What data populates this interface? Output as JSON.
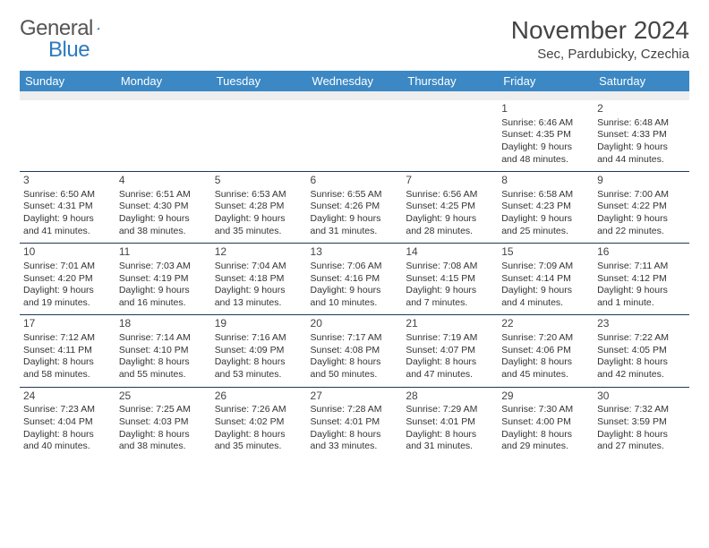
{
  "logo": {
    "word1": "General",
    "word2": "Blue"
  },
  "title": "November 2024",
  "location": "Sec, Pardubicky, Czechia",
  "colors": {
    "header_bg": "#3b88c4",
    "header_text": "#ffffff",
    "border": "#1f3a5a",
    "spacer_bg": "#eeeeee",
    "text": "#333333",
    "logo_gray": "#555555",
    "logo_blue": "#2e7ac0"
  },
  "day_headers": [
    "Sunday",
    "Monday",
    "Tuesday",
    "Wednesday",
    "Thursday",
    "Friday",
    "Saturday"
  ],
  "weeks": [
    [
      null,
      null,
      null,
      null,
      null,
      {
        "n": "1",
        "sunrise": "6:46 AM",
        "sunset": "4:35 PM",
        "dh": "9",
        "dm": "48"
      },
      {
        "n": "2",
        "sunrise": "6:48 AM",
        "sunset": "4:33 PM",
        "dh": "9",
        "dm": "44"
      }
    ],
    [
      {
        "n": "3",
        "sunrise": "6:50 AM",
        "sunset": "4:31 PM",
        "dh": "9",
        "dm": "41"
      },
      {
        "n": "4",
        "sunrise": "6:51 AM",
        "sunset": "4:30 PM",
        "dh": "9",
        "dm": "38"
      },
      {
        "n": "5",
        "sunrise": "6:53 AM",
        "sunset": "4:28 PM",
        "dh": "9",
        "dm": "35"
      },
      {
        "n": "6",
        "sunrise": "6:55 AM",
        "sunset": "4:26 PM",
        "dh": "9",
        "dm": "31"
      },
      {
        "n": "7",
        "sunrise": "6:56 AM",
        "sunset": "4:25 PM",
        "dh": "9",
        "dm": "28"
      },
      {
        "n": "8",
        "sunrise": "6:58 AM",
        "sunset": "4:23 PM",
        "dh": "9",
        "dm": "25"
      },
      {
        "n": "9",
        "sunrise": "7:00 AM",
        "sunset": "4:22 PM",
        "dh": "9",
        "dm": "22"
      }
    ],
    [
      {
        "n": "10",
        "sunrise": "7:01 AM",
        "sunset": "4:20 PM",
        "dh": "9",
        "dm": "19"
      },
      {
        "n": "11",
        "sunrise": "7:03 AM",
        "sunset": "4:19 PM",
        "dh": "9",
        "dm": "16"
      },
      {
        "n": "12",
        "sunrise": "7:04 AM",
        "sunset": "4:18 PM",
        "dh": "9",
        "dm": "13"
      },
      {
        "n": "13",
        "sunrise": "7:06 AM",
        "sunset": "4:16 PM",
        "dh": "9",
        "dm": "10"
      },
      {
        "n": "14",
        "sunrise": "7:08 AM",
        "sunset": "4:15 PM",
        "dh": "9",
        "dm": "7"
      },
      {
        "n": "15",
        "sunrise": "7:09 AM",
        "sunset": "4:14 PM",
        "dh": "9",
        "dm": "4"
      },
      {
        "n": "16",
        "sunrise": "7:11 AM",
        "sunset": "4:12 PM",
        "dh": "9",
        "dm": "1"
      }
    ],
    [
      {
        "n": "17",
        "sunrise": "7:12 AM",
        "sunset": "4:11 PM",
        "dh": "8",
        "dm": "58"
      },
      {
        "n": "18",
        "sunrise": "7:14 AM",
        "sunset": "4:10 PM",
        "dh": "8",
        "dm": "55"
      },
      {
        "n": "19",
        "sunrise": "7:16 AM",
        "sunset": "4:09 PM",
        "dh": "8",
        "dm": "53"
      },
      {
        "n": "20",
        "sunrise": "7:17 AM",
        "sunset": "4:08 PM",
        "dh": "8",
        "dm": "50"
      },
      {
        "n": "21",
        "sunrise": "7:19 AM",
        "sunset": "4:07 PM",
        "dh": "8",
        "dm": "47"
      },
      {
        "n": "22",
        "sunrise": "7:20 AM",
        "sunset": "4:06 PM",
        "dh": "8",
        "dm": "45"
      },
      {
        "n": "23",
        "sunrise": "7:22 AM",
        "sunset": "4:05 PM",
        "dh": "8",
        "dm": "42"
      }
    ],
    [
      {
        "n": "24",
        "sunrise": "7:23 AM",
        "sunset": "4:04 PM",
        "dh": "8",
        "dm": "40"
      },
      {
        "n": "25",
        "sunrise": "7:25 AM",
        "sunset": "4:03 PM",
        "dh": "8",
        "dm": "38"
      },
      {
        "n": "26",
        "sunrise": "7:26 AM",
        "sunset": "4:02 PM",
        "dh": "8",
        "dm": "35"
      },
      {
        "n": "27",
        "sunrise": "7:28 AM",
        "sunset": "4:01 PM",
        "dh": "8",
        "dm": "33"
      },
      {
        "n": "28",
        "sunrise": "7:29 AM",
        "sunset": "4:01 PM",
        "dh": "8",
        "dm": "31"
      },
      {
        "n": "29",
        "sunrise": "7:30 AM",
        "sunset": "4:00 PM",
        "dh": "8",
        "dm": "29"
      },
      {
        "n": "30",
        "sunrise": "7:32 AM",
        "sunset": "3:59 PM",
        "dh": "8",
        "dm": "27"
      }
    ]
  ]
}
